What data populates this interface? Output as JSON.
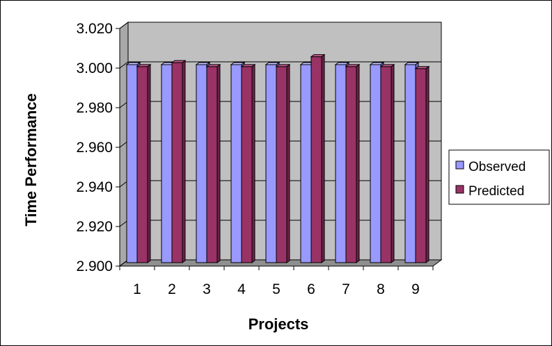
{
  "chart_data": {
    "type": "bar",
    "style": "3d-clustered-column",
    "categories": [
      "1",
      "2",
      "3",
      "4",
      "5",
      "6",
      "7",
      "8",
      "9"
    ],
    "series": [
      {
        "name": "Observed",
        "values": [
          3.0,
          3.0,
          3.0,
          3.0,
          3.0,
          3.0,
          3.0,
          3.0,
          3.0
        ]
      },
      {
        "name": "Predicted",
        "values": [
          2.999,
          3.001,
          2.999,
          2.999,
          2.999,
          3.004,
          2.999,
          2.999,
          2.998
        ]
      }
    ],
    "title": "",
    "xlabel": "Projects",
    "ylabel": "Time Performance",
    "ylim": [
      2.9,
      3.02
    ],
    "yticks": [
      "2.900",
      "2.920",
      "2.940",
      "2.960",
      "2.980",
      "3.000",
      "3.020"
    ],
    "grid": true,
    "legend_position": "right"
  },
  "colors": {
    "wall": "#c0c0c0",
    "floor": "#8f8f8f",
    "observed_front": "#9999ff",
    "observed_top": "#c4c4ff",
    "observed_side": "#6c6cc6",
    "predicted_front": "#993366",
    "predicted_top": "#bf5b8c",
    "predicted_side": "#6b2347",
    "gridline": "#000000"
  }
}
